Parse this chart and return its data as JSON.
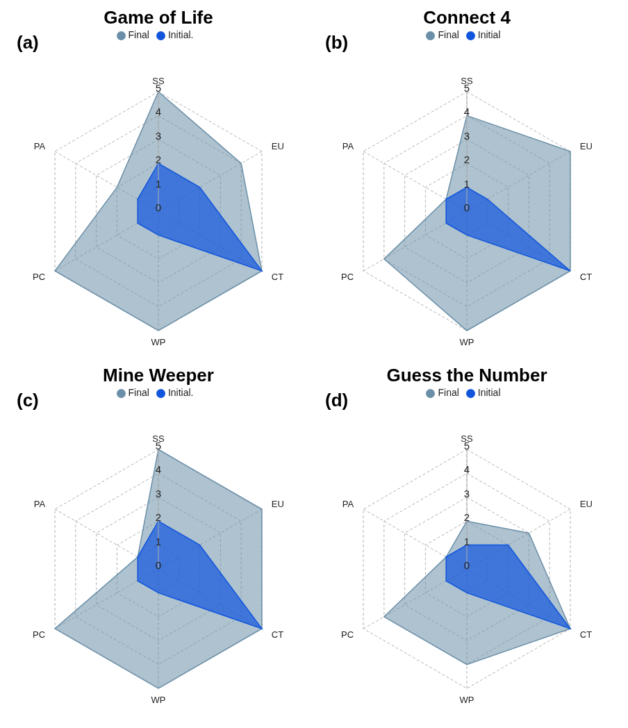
{
  "chart_data": [
    {
      "type": "radar",
      "title": "Game of Life",
      "annotations": [
        "(a)"
      ],
      "categories": [
        "SS",
        "EU",
        "CT",
        "WP",
        "PC",
        "PA"
      ],
      "ylim": [
        0,
        5
      ],
      "yticks": [
        0,
        1,
        2,
        3,
        4,
        5
      ],
      "grid": true,
      "legend": "top",
      "series": [
        {
          "name": "Final",
          "color": "#6b8fa8",
          "values": [
            5,
            4,
            5,
            5,
            5,
            2
          ]
        },
        {
          "name": "Initial.",
          "color": "#1155dd",
          "values": [
            2,
            2,
            5,
            1,
            1,
            1
          ]
        }
      ]
    },
    {
      "type": "radar",
      "title": "Connect 4",
      "annotations": [
        "(b)"
      ],
      "categories": [
        "SS",
        "EU",
        "CT",
        "WP",
        "PC",
        "PA"
      ],
      "ylim": [
        0,
        5
      ],
      "yticks": [
        0,
        1,
        2,
        3,
        4,
        5
      ],
      "grid": true,
      "legend": "top",
      "series": [
        {
          "name": "Final",
          "color": "#6b8fa8",
          "values": [
            4,
            5,
            5,
            5,
            4,
            1
          ]
        },
        {
          "name": "Initial",
          "color": "#1155dd",
          "values": [
            1,
            1,
            5,
            1,
            1,
            1
          ]
        }
      ]
    },
    {
      "type": "radar",
      "title": "Mine Weeper",
      "annotations": [
        "(c)"
      ],
      "categories": [
        "SS",
        "EU",
        "CT",
        "WP",
        "PC",
        "PA"
      ],
      "ylim": [
        0,
        5
      ],
      "yticks": [
        0,
        1,
        2,
        3,
        4,
        5
      ],
      "grid": true,
      "legend": "top",
      "series": [
        {
          "name": "Final",
          "color": "#6b8fa8",
          "values": [
            5,
            5,
            5,
            5,
            5,
            1
          ]
        },
        {
          "name": "Initial.",
          "color": "#1155dd",
          "values": [
            2,
            2,
            5,
            1,
            1,
            1
          ]
        }
      ]
    },
    {
      "type": "radar",
      "title": "Guess the Number",
      "annotations": [
        "(d)"
      ],
      "categories": [
        "SS",
        "EU",
        "CT",
        "WP",
        "PC",
        "PA"
      ],
      "ylim": [
        0,
        5
      ],
      "yticks": [
        0,
        1,
        2,
        3,
        4,
        5
      ],
      "grid": true,
      "legend": "top",
      "series": [
        {
          "name": "Final",
          "color": "#6b8fa8",
          "values": [
            2,
            3,
            5,
            4,
            4,
            1
          ]
        },
        {
          "name": "Initial",
          "color": "#1155dd",
          "values": [
            1,
            2,
            5,
            1,
            1,
            1
          ]
        }
      ]
    }
  ]
}
